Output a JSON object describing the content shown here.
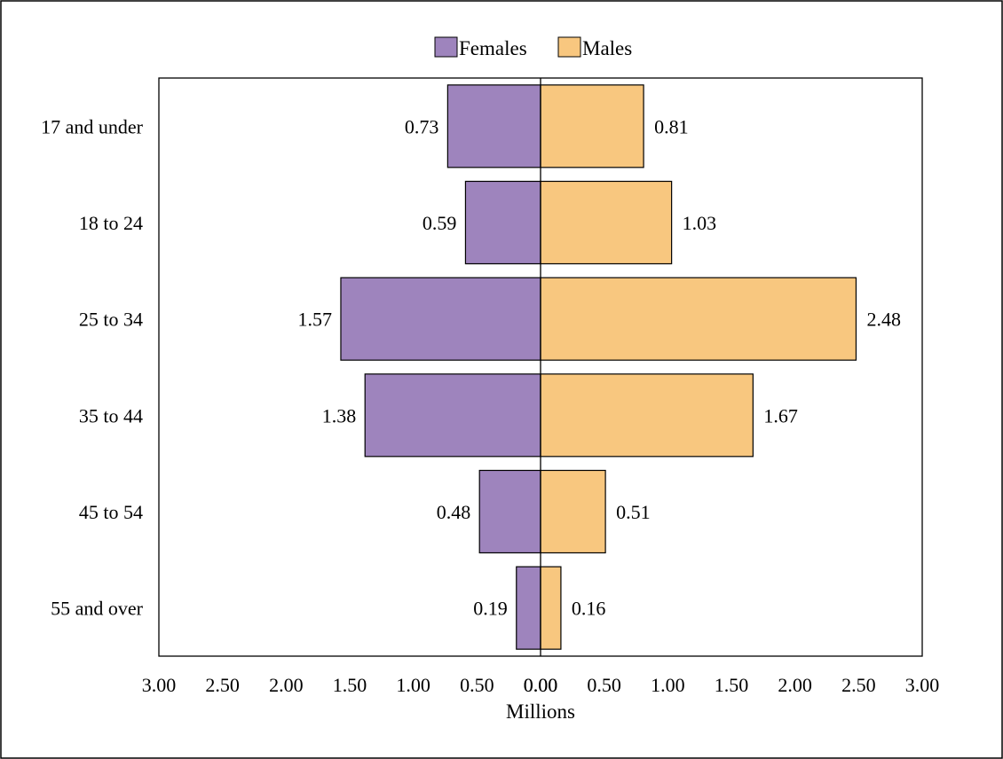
{
  "chart_data": {
    "type": "bar",
    "orientation": "horizontal",
    "layout": "diverging",
    "categories": [
      "17 and under",
      "18 to 24",
      "25 to 34",
      "35 to 44",
      "45 to 54",
      "55 and over"
    ],
    "series": [
      {
        "name": "Females",
        "side": "left",
        "color": "#9e84bd",
        "values": [
          0.73,
          0.59,
          1.57,
          1.38,
          0.48,
          0.19
        ]
      },
      {
        "name": "Males",
        "side": "right",
        "color": "#f8c77f",
        "values": [
          0.81,
          1.03,
          2.48,
          1.67,
          0.51,
          0.16
        ]
      }
    ],
    "xlabel": "Millions",
    "xlim": [
      -3,
      3
    ],
    "x_ticks": [
      "3.00",
      "2.50",
      "2.00",
      "1.50",
      "1.00",
      "0.50",
      "0.00",
      "0.00",
      "0.50",
      "1.00",
      "1.50",
      "2.00",
      "2.50",
      "3.00"
    ],
    "legend_position": "top-center",
    "grid": false
  }
}
